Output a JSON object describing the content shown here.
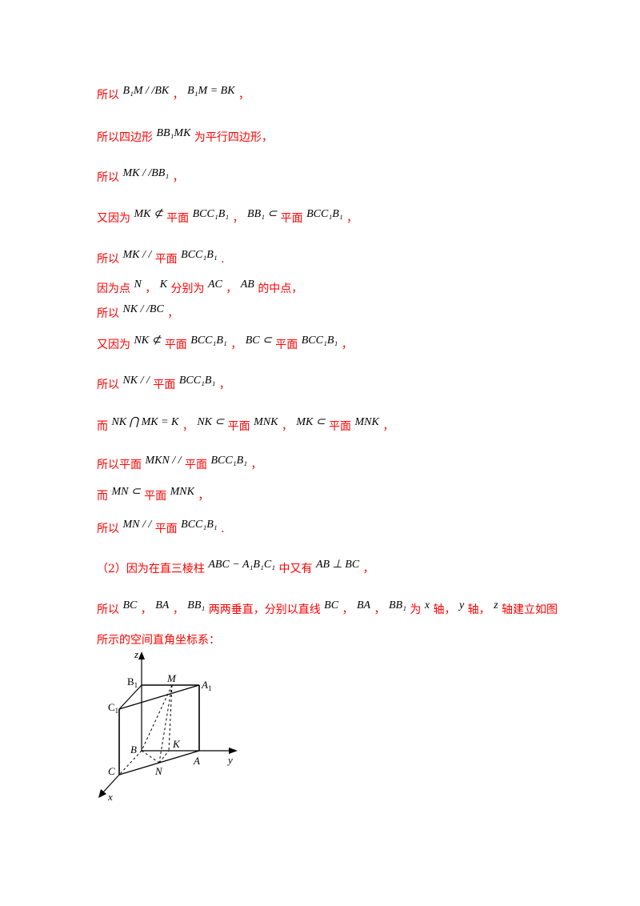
{
  "lines": [
    {
      "seg": [
        "所以",
        "B₁M / /BK",
        "，",
        "B₁M = BK",
        "，"
      ]
    },
    {
      "seg": [
        "所以四边形",
        "BB₁MK",
        "为平行四边形，"
      ]
    },
    {
      "seg": [
        "所以",
        "MK / /BB₁",
        "，"
      ]
    },
    {
      "seg": [
        "又因为",
        "MK ⊄",
        "平面",
        "BCC₁B₁",
        "，",
        "BB₁ ⊂",
        "平面",
        "BCC₁B₁",
        "，"
      ]
    },
    {
      "seg": [
        "所以",
        "MK / /",
        "平面",
        "BCC₁B₁",
        "."
      ]
    },
    {
      "seg": [
        "因为点",
        "N",
        "，",
        "K",
        "分别为",
        "AC",
        "，",
        "AB",
        "的中点，"
      ]
    },
    {
      "seg": [
        "所以",
        "NK / /BC",
        "，"
      ]
    },
    {
      "seg": [
        "又因为",
        "NK ⊄",
        "平面",
        "BCC₁B₁",
        "，",
        "BC ⊂",
        "平面",
        "BCC₁B₁",
        "，"
      ]
    },
    {
      "seg": [
        "所以",
        "NK / /",
        "平面",
        "BCC₁B₁",
        "，"
      ]
    },
    {
      "seg": [
        "而",
        "NK ⋂ MK = K",
        "，",
        "NK ⊂",
        "平面",
        "MNK",
        "，",
        "MK ⊂",
        "平面",
        "MNK",
        "，"
      ]
    },
    {
      "seg": [
        "所以平面",
        "MKN / /",
        "平面",
        "BCC₁B₁",
        "，"
      ]
    },
    {
      "seg": [
        "而",
        "MN ⊂",
        "平面",
        "MNK",
        "，"
      ]
    },
    {
      "seg": [
        "所以",
        "MN / /",
        "平面",
        "BCC₁B₁",
        "."
      ]
    },
    {
      "seg": [
        "（2）因为在直三棱柱",
        "ABC − A₁B₁C₁",
        "中又有",
        "AB ⊥ BC",
        "，"
      ]
    },
    {
      "seg": [
        "所以",
        "BC",
        "，",
        "BA",
        "，",
        "BB₁",
        "两两垂直，分别以直线",
        "BC",
        "，",
        "BA",
        "，",
        "BB₁",
        "为",
        "x",
        "轴，",
        "y",
        "轴，",
        "z",
        "轴建立如图"
      ]
    },
    {
      "seg": [
        "所示的空间直角坐标系："
      ]
    }
  ],
  "figure": {
    "labels": {
      "z": "z",
      "x": "x",
      "y": "y",
      "B1": "B",
      "B1sub": "1",
      "M": "M",
      "A1": "A",
      "A1sub": "1",
      "C1": "C",
      "C1sub": "1",
      "B": "B",
      "K": "K",
      "C": "C",
      "N": "N",
      "A": "A"
    }
  }
}
